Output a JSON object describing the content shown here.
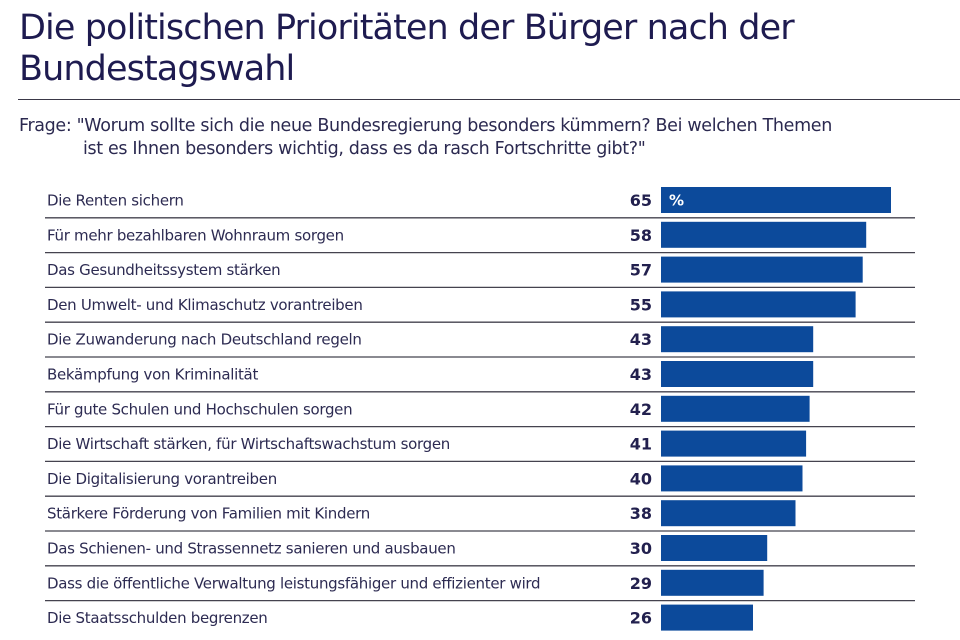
{
  "header": {
    "title": "Die politischen Prioritäten der Bürger nach der Bundestagswahl",
    "question_prefix": "Frage:",
    "question_line1": "\"Worum sollte sich die neue Bundesregierung besonders kümmern? Bei welchen Themen",
    "question_line2": "ist es Ihnen besonders wichtig, dass es da rasch Fortschritte gibt?\""
  },
  "colors": {
    "bar": "#0c4a9b",
    "text": "#1e1b50",
    "divider": "#45434f"
  },
  "chart_data": {
    "type": "bar",
    "orientation": "horizontal",
    "title": "Die politischen Prioritäten der Bürger nach der Bundestagswahl",
    "subtitle": "Frage: \"Worum sollte sich die neue Bundesregierung besonders kümmern? Bei welchen Themen ist es Ihnen besonders wichtig, dass es da rasch Fortschritte gibt?\"",
    "xlabel": "",
    "ylabel": "",
    "unit": "%",
    "xlim": [
      0,
      65
    ],
    "grid": false,
    "legend": "none",
    "categories": [
      "Die Renten sichern",
      "Für mehr bezahlbaren Wohnraum sorgen",
      "Das Gesundheitssystem stärken",
      "Den Umwelt- und Klimaschutz vorantreiben",
      "Die Zuwanderung nach Deutschland regeln",
      "Bekämpfung von Kriminalität",
      "Für gute Schulen und Hochschulen sorgen",
      "Die Wirtschaft stärken, für Wirtschaftswachstum sorgen",
      "Die Digitalisierung vorantreiben",
      "Stärkere Förderung von Familien mit Kindern",
      "Das Schienen- und Strassennetz sanieren und ausbauen",
      "Dass die öffentliche Verwaltung leistungsfähiger und effizienter wird",
      "Die Staatsschulden begrenzen"
    ],
    "values": [
      65,
      58,
      57,
      55,
      43,
      43,
      42,
      41,
      40,
      38,
      30,
      29,
      26
    ]
  }
}
